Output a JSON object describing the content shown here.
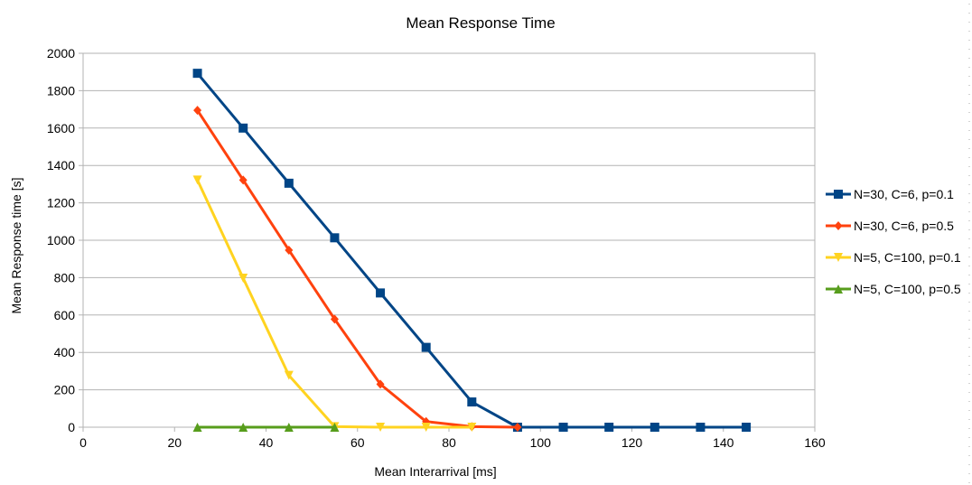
{
  "chart_data": {
    "type": "line",
    "title": "Mean Response Time",
    "xlabel": "Mean Interarrival [ms]",
    "ylabel": "Mean Response time [s]",
    "xlim": [
      0,
      160
    ],
    "ylim": [
      0,
      2000
    ],
    "xticks": [
      0,
      20,
      40,
      60,
      80,
      100,
      120,
      140,
      160
    ],
    "yticks": [
      0,
      200,
      400,
      600,
      800,
      1000,
      1200,
      1400,
      1600,
      1800,
      2000
    ],
    "grid": "horizontal",
    "legend_position": "right",
    "series": [
      {
        "name": "N=30, C=6, p=0.1",
        "color": "#004586",
        "marker": "square",
        "x": [
          25,
          35,
          45,
          55,
          65,
          75,
          85,
          95,
          105,
          115,
          125,
          135,
          145
        ],
        "y": [
          1893,
          1600,
          1305,
          1013,
          718,
          427,
          135,
          0,
          0,
          0,
          0,
          0,
          0
        ]
      },
      {
        "name": "N=30, C=6, p=0.5",
        "color": "#ff420e",
        "marker": "diamond",
        "x": [
          25,
          35,
          45,
          55,
          65,
          75,
          85,
          95
        ],
        "y": [
          1695,
          1322,
          947,
          578,
          230,
          30,
          3,
          0
        ]
      },
      {
        "name": "N=5, C=100, p=0.1",
        "color": "#ffd320",
        "marker": "triangle-down",
        "x": [
          25,
          35,
          45,
          55,
          65,
          75,
          85
        ],
        "y": [
          1322,
          797,
          277,
          3,
          0,
          0,
          0
        ]
      },
      {
        "name": "N=5, C=100, p=0.5",
        "color": "#579d1c",
        "marker": "triangle-up",
        "x": [
          25,
          35,
          45,
          55
        ],
        "y": [
          0,
          0,
          0,
          0
        ]
      }
    ]
  }
}
